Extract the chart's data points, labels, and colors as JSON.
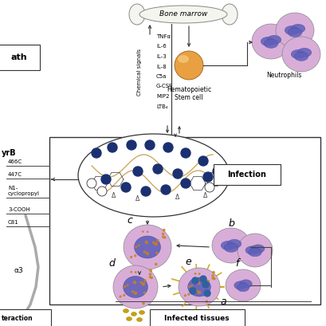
{
  "bg_color": "#ffffff",
  "fig_width": 4.09,
  "fig_height": 4.09,
  "dpi": 100,
  "bone_marrow_label": "Bone marrow",
  "chemical_signals": [
    "TNFα",
    "IL-6",
    "IL-3",
    "IL-8",
    "C5a",
    "G-CSF",
    "MIP2",
    "LTB₄"
  ],
  "chemical_signals_rotated_label": "Chemical signals",
  "stem_cell_label": "Hematopoietic\nStem cell",
  "neutrophils_label": "Neutrophils",
  "infection_label": "Infection",
  "infected_tissues_label": "Infected tissues",
  "path_label": "ath",
  "gyrb_label": "yrB",
  "interaction_label": "teraction",
  "labels_466c": "466C",
  "labels_447c": "447C",
  "labels_n1": "N1-\ncyclopropyl",
  "labels_3cooh": "3-COOH",
  "labels_c81": "C81",
  "labels_s3": "α3",
  "letter_a": "a",
  "letter_b": "b",
  "letter_c": "c",
  "letter_d": "d",
  "letter_e": "e",
  "letter_f": "f",
  "neutrophil_outer": "#d8aed8",
  "neutrophil_inner": "#c090c0",
  "nucleus_color": "#6060b8",
  "stem_cell_color": "#e8a040",
  "ciprof_dot_color": "#1a3070",
  "dna_color": "#c8a050",
  "bacteria_yellow": "#d4a010",
  "bacteria_blue": "#3060a0",
  "arrow_color": "#333333",
  "line_color": "#444444",
  "box_edge": "#333333",
  "bone_fill": "#f5f5f0"
}
